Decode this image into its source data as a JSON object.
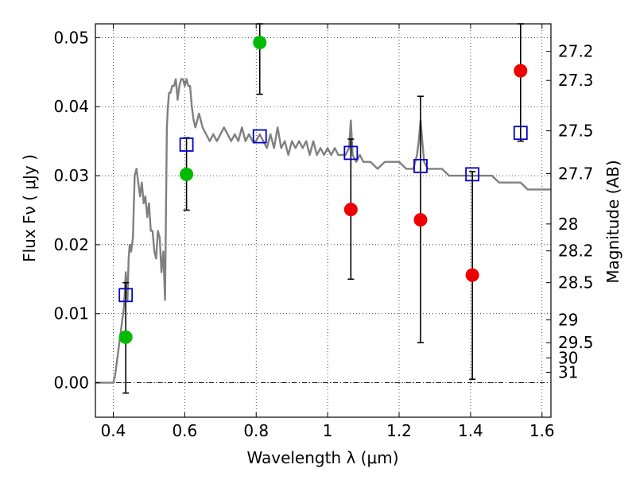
{
  "chart_data": {
    "type": "scatter",
    "xlabel": "Wavelength  λ (μm)",
    "ylabel": "Flux  Fν  ( μJy )",
    "ylabel_right": "Magnitude (AB)",
    "xlim": [
      0.35,
      1.625
    ],
    "ylim": [
      -0.005,
      0.052
    ],
    "x_ticks": [
      0.4,
      0.6,
      0.8,
      1.0,
      1.2,
      1.4,
      1.6
    ],
    "x_tick_labels": [
      "0.4",
      "0.6",
      "0.8",
      "1",
      "1.2",
      "1.4",
      "1.6"
    ],
    "y_ticks": [
      0.0,
      0.01,
      0.02,
      0.03,
      0.04,
      0.05
    ],
    "y_tick_labels": [
      "0.00",
      "0.01",
      "0.02",
      "0.03",
      "0.04",
      "0.05"
    ],
    "magnitude_ticks": [
      {
        "label": "27.2",
        "flux": 0.048
      },
      {
        "label": "27.3",
        "flux": 0.0438
      },
      {
        "label": "27.5",
        "flux": 0.0365
      },
      {
        "label": "27.7",
        "flux": 0.0303
      },
      {
        "label": "28",
        "flux": 0.023
      },
      {
        "label": "28.2",
        "flux": 0.0191
      },
      {
        "label": "28.5",
        "flux": 0.0145
      },
      {
        "label": "29",
        "flux": 0.0091
      },
      {
        "label": "29.5",
        "flux": 0.0058
      },
      {
        "label": "30",
        "flux": 0.0036
      },
      {
        "label": "31",
        "flux": 0.0015
      }
    ],
    "grid": true,
    "zero_line": true,
    "series": [
      {
        "kind": "line",
        "color": "#808080",
        "x": [
          0.35,
          0.4,
          0.405,
          0.41,
          0.415,
          0.42,
          0.425,
          0.43,
          0.435,
          0.44,
          0.443,
          0.446,
          0.45,
          0.455,
          0.46,
          0.465,
          0.47,
          0.475,
          0.48,
          0.485,
          0.49,
          0.495,
          0.5,
          0.505,
          0.51,
          0.515,
          0.52,
          0.525,
          0.53,
          0.535,
          0.54,
          0.545,
          0.55,
          0.553,
          0.556,
          0.56,
          0.565,
          0.57,
          0.575,
          0.58,
          0.585,
          0.59,
          0.595,
          0.6,
          0.605,
          0.61,
          0.615,
          0.62,
          0.625,
          0.63,
          0.635,
          0.64,
          0.645,
          0.65,
          0.66,
          0.67,
          0.68,
          0.69,
          0.7,
          0.71,
          0.72,
          0.73,
          0.74,
          0.75,
          0.76,
          0.77,
          0.78,
          0.79,
          0.8,
          0.81,
          0.82,
          0.83,
          0.84,
          0.85,
          0.86,
          0.87,
          0.88,
          0.89,
          0.9,
          0.91,
          0.92,
          0.93,
          0.94,
          0.95,
          0.96,
          0.97,
          0.98,
          0.99,
          1.0,
          1.01,
          1.02,
          1.03,
          1.04,
          1.05,
          1.06,
          1.065,
          1.07,
          1.08,
          1.09,
          1.1,
          1.12,
          1.14,
          1.16,
          1.18,
          1.2,
          1.22,
          1.24,
          1.25,
          1.255,
          1.26,
          1.265,
          1.27,
          1.28,
          1.3,
          1.32,
          1.34,
          1.36,
          1.38,
          1.4,
          1.42,
          1.44,
          1.46,
          1.48,
          1.5,
          1.52,
          1.54,
          1.56,
          1.58,
          1.6,
          1.625
        ],
        "y": [
          0.0,
          0.0,
          0.001,
          0.003,
          0.005,
          0.007,
          0.009,
          0.011,
          0.016,
          0.012,
          0.018,
          0.02,
          0.019,
          0.021,
          0.03,
          0.031,
          0.029,
          0.027,
          0.029,
          0.026,
          0.027,
          0.024,
          0.026,
          0.022,
          0.022,
          0.019,
          0.018,
          0.022,
          0.021,
          0.016,
          0.019,
          0.012,
          0.037,
          0.04,
          0.042,
          0.042,
          0.043,
          0.043,
          0.044,
          0.041,
          0.043,
          0.044,
          0.044,
          0.043,
          0.044,
          0.043,
          0.043,
          0.04,
          0.038,
          0.037,
          0.038,
          0.039,
          0.038,
          0.037,
          0.036,
          0.035,
          0.036,
          0.035,
          0.036,
          0.037,
          0.036,
          0.035,
          0.036,
          0.035,
          0.037,
          0.035,
          0.036,
          0.035,
          0.035,
          0.036,
          0.035,
          0.034,
          0.036,
          0.034,
          0.037,
          0.034,
          0.035,
          0.033,
          0.035,
          0.034,
          0.035,
          0.034,
          0.035,
          0.033,
          0.035,
          0.033,
          0.034,
          0.033,
          0.034,
          0.033,
          0.034,
          0.033,
          0.033,
          0.033,
          0.034,
          0.038,
          0.033,
          0.032,
          0.033,
          0.032,
          0.032,
          0.031,
          0.032,
          0.032,
          0.032,
          0.031,
          0.031,
          0.033,
          0.035,
          0.038,
          0.035,
          0.032,
          0.031,
          0.031,
          0.031,
          0.03,
          0.03,
          0.03,
          0.03,
          0.03,
          0.03,
          0.03,
          0.029,
          0.029,
          0.029,
          0.029,
          0.028,
          0.028,
          0.028,
          0.028
        ]
      },
      {
        "kind": "open-square",
        "color": "#0000cc",
        "x": [
          0.435,
          0.605,
          0.81,
          1.065,
          1.26,
          1.405,
          1.54
        ],
        "y": [
          0.0127,
          0.0345,
          0.0357,
          0.0333,
          0.0314,
          0.0302,
          0.0362
        ]
      },
      {
        "kind": "filled-circle",
        "color": "#00bb00",
        "x": [
          0.435,
          0.605,
          0.81
        ],
        "y": [
          0.0066,
          0.0302,
          0.0493
        ],
        "errors": [
          {
            "x": 0.435,
            "low": -0.0015,
            "high": 0.0145
          },
          {
            "x": 0.605,
            "low": 0.025,
            "high": 0.0355
          },
          {
            "x": 0.81,
            "low": 0.0418,
            "high": 0.052
          }
        ]
      },
      {
        "kind": "filled-circle",
        "color": "#ee0000",
        "x": [
          1.065,
          1.26,
          1.405,
          1.54
        ],
        "y": [
          0.0251,
          0.0236,
          0.0156,
          0.0452
        ],
        "errors": [
          {
            "x": 1.065,
            "low": 0.015,
            "high": 0.0353
          },
          {
            "x": 1.26,
            "low": 0.0058,
            "high": 0.0415
          },
          {
            "x": 1.405,
            "low": 0.0005,
            "high": 0.0306
          },
          {
            "x": 1.54,
            "low": 0.035,
            "high": 0.052
          }
        ]
      }
    ]
  }
}
